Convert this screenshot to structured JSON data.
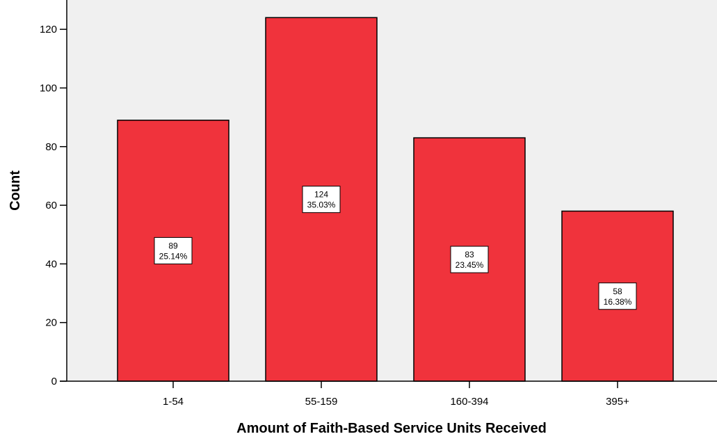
{
  "chart_data": {
    "type": "bar",
    "categories": [
      "1-54",
      "55-159",
      "160-394",
      "395+"
    ],
    "values": [
      89,
      124,
      83,
      58
    ],
    "percent_labels": [
      "25.14%",
      "35.03%",
      "23.45%",
      "16.38%"
    ],
    "xlabel": "Amount of Faith-Based Service Units Received",
    "ylabel": "Count",
    "ylim": [
      0,
      130
    ],
    "yticks": [
      0,
      20,
      40,
      60,
      80,
      100,
      120
    ],
    "grid": false,
    "colors": {
      "bar": "#f0333c",
      "plot_background": "#f0f0f0",
      "label_box": "#ffffff"
    }
  }
}
